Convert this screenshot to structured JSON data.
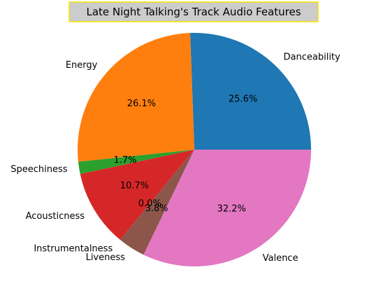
{
  "chart_data": {
    "type": "pie",
    "title": "Late Night Talking's Track Audio Features",
    "start_angle_deg": 0,
    "direction": "counterclockwise",
    "legend": "none",
    "slices": [
      {
        "label": "Danceability",
        "value": 25.6,
        "pct_label": "25.6%",
        "color": "#1f77b4"
      },
      {
        "label": "Energy",
        "value": 26.1,
        "pct_label": "26.1%",
        "color": "#ff7f0e"
      },
      {
        "label": "Speechiness",
        "value": 1.7,
        "pct_label": "1.7%",
        "color": "#2ca02c"
      },
      {
        "label": "Acousticness",
        "value": 10.7,
        "pct_label": "10.7%",
        "color": "#d62728"
      },
      {
        "label": "Instrumentalness",
        "value": 0.0,
        "pct_label": "0.0%",
        "color": "#9467bd"
      },
      {
        "label": "Liveness",
        "value": 3.8,
        "pct_label": "3.8%",
        "color": "#8c564b"
      },
      {
        "label": "Valence",
        "value": 32.2,
        "pct_label": "32.2%",
        "color": "#e377c2"
      }
    ]
  }
}
